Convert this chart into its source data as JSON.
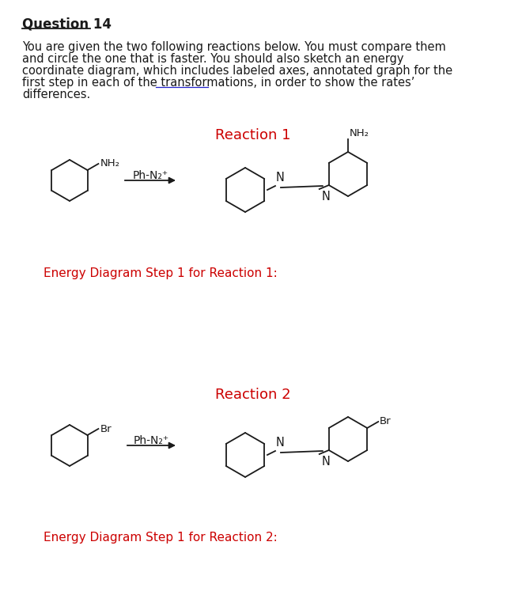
{
  "title": "Question 14",
  "body_lines": [
    "You are given the two following reactions below. You must compare them",
    "and circle the one that is faster. You should also sketch an energy",
    "coordinate diagram, which includes labeled axes, annotated graph for the",
    "first step in each of the transformations, in order to show the rates’",
    "differences."
  ],
  "reaction1_label": "Reaction 1",
  "reaction2_label": "Reaction 2",
  "energy1_label": "Energy Diagram Step 1 for Reaction 1:",
  "energy2_label": "Energy Diagram Step 1 for Reaction 2:",
  "red_color": "#CC0000",
  "blue_color": "#2222CC",
  "black_color": "#1a1a1a",
  "bg_color": "#ffffff",
  "font_size_title": 12,
  "font_size_body": 10.5,
  "font_size_label": 11,
  "font_size_chem": 9.5
}
